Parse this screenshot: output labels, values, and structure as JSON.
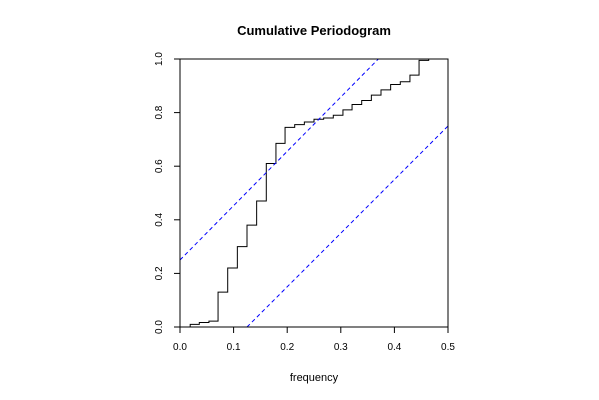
{
  "chart_data": {
    "type": "line",
    "title": "Cumulative Periodogram",
    "xlabel": "frequency",
    "ylabel": "",
    "xlim": [
      0,
      0.5
    ],
    "ylim": [
      0,
      1
    ],
    "x_ticks": [
      0.0,
      0.1,
      0.2,
      0.3,
      0.4,
      0.5
    ],
    "x_tick_labels": [
      "0.0",
      "0.1",
      "0.2",
      "0.3",
      "0.4",
      "0.5"
    ],
    "y_ticks": [
      0.0,
      0.2,
      0.4,
      0.6,
      0.8,
      1.0
    ],
    "y_tick_labels": [
      "0.0",
      "0.2",
      "0.4",
      "0.6",
      "0.8",
      "1.0"
    ],
    "grid": false,
    "series": [
      {
        "style": "step",
        "color": "#000000",
        "x": [
          0.0,
          0.019,
          0.036,
          0.054,
          0.071,
          0.089,
          0.107,
          0.125,
          0.143,
          0.161,
          0.179,
          0.196,
          0.214,
          0.232,
          0.25,
          0.268,
          0.286,
          0.304,
          0.321,
          0.339,
          0.357,
          0.375,
          0.393,
          0.411,
          0.429,
          0.446,
          0.464,
          0.482,
          0.5
        ],
        "y": [
          0.0,
          0.01,
          0.017,
          0.022,
          0.13,
          0.22,
          0.3,
          0.38,
          0.47,
          0.61,
          0.685,
          0.745,
          0.755,
          0.765,
          0.775,
          0.78,
          0.79,
          0.81,
          0.83,
          0.845,
          0.865,
          0.885,
          0.905,
          0.915,
          0.94,
          0.995,
          1.0,
          1.0,
          1.0
        ]
      },
      {
        "style": "dashed",
        "color": "#0000ff",
        "x": [
          0.0,
          0.37
        ],
        "y": [
          0.25,
          1.0
        ]
      },
      {
        "style": "dashed",
        "color": "#0000ff",
        "x": [
          0.125,
          0.5
        ],
        "y": [
          0.0,
          0.75
        ]
      }
    ]
  }
}
